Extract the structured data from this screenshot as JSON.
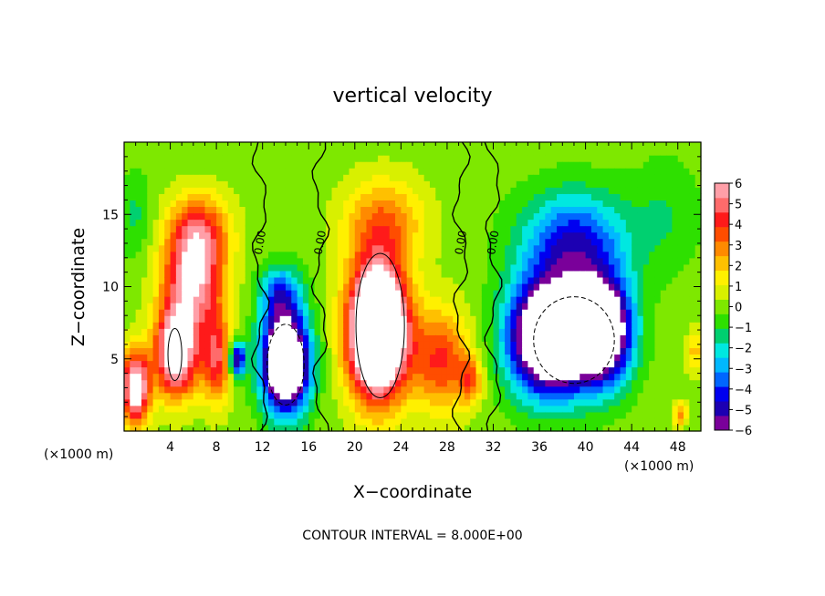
{
  "chart_data": {
    "type": "heatmap",
    "title": "vertical velocity",
    "xlabel": "X−coordinate",
    "ylabel": "Z−coordinate",
    "x_unit_left": "(×1000 m)",
    "x_unit_right": "(×1000 m)",
    "xlim": [
      0,
      50
    ],
    "ylim": [
      0,
      20
    ],
    "x_ticks": [
      4,
      8,
      12,
      16,
      20,
      24,
      28,
      32,
      36,
      40,
      44,
      48
    ],
    "x_tick_labels": [
      "4",
      "8",
      "12",
      "16",
      "20",
      "24",
      "28",
      "32",
      "36",
      "40",
      "44",
      "48"
    ],
    "y_ticks": [
      5,
      10,
      15
    ],
    "y_tick_labels": [
      "5",
      "10",
      "15"
    ],
    "colorbar": {
      "min": -6,
      "max": 6,
      "tick_labels": [
        "6",
        "5",
        "4",
        "3",
        "2",
        "1",
        "0",
        "−1",
        "−2",
        "−3",
        "−4",
        "−5",
        "−6"
      ],
      "colors": [
        "#7a009a",
        "#1c00b2",
        "#0000f0",
        "#0066ff",
        "#00b8ff",
        "#00e8e0",
        "#00d070",
        "#2ee000",
        "#7ee800",
        "#d8f000",
        "#fff000",
        "#ffc000",
        "#ff8a00",
        "#ff4d00",
        "#ff1a1a",
        "#ff6b6b",
        "#ff9fa8"
      ]
    },
    "contour_labels": [
      "0.00",
      "0.00",
      "0.00",
      "0.00"
    ],
    "contour_interval_text": "CONTOUR INTERVAL = 8.000E+00",
    "cells": [
      {
        "x": 1.0,
        "z": 3.0,
        "w": 7.5,
        "sx": 1.2,
        "sz": 2.5
      },
      {
        "x": 4.5,
        "z": 5.5,
        "w": 8.0,
        "sx": 1.8,
        "sz": 3.0
      },
      {
        "x": 6.0,
        "z": 10.5,
        "w": 6.0,
        "sx": 2.6,
        "sz": 3.5
      },
      {
        "x": 6.5,
        "z": 14.0,
        "w": 3.5,
        "sx": 2.6,
        "sz": 2.5
      },
      {
        "x": 8.0,
        "z": 5.0,
        "w": 4.5,
        "sx": 1.3,
        "sz": 3.0
      },
      {
        "x": 9.8,
        "z": 5.0,
        "w": -6.0,
        "sx": 0.7,
        "sz": 1.2
      },
      {
        "x": 14.0,
        "z": 4.8,
        "w": -11.0,
        "sx": 2.0,
        "sz": 3.3
      },
      {
        "x": 13.5,
        "z": 9.5,
        "w": -3.5,
        "sx": 1.8,
        "sz": 2.0
      },
      {
        "x": 22.0,
        "z": 7.0,
        "w": 13.0,
        "sx": 2.5,
        "sz": 4.5
      },
      {
        "x": 22.5,
        "z": 14.5,
        "w": 3.0,
        "sx": 3.5,
        "sz": 3.0
      },
      {
        "x": 27.5,
        "z": 5.0,
        "w": 4.0,
        "sx": 2.5,
        "sz": 3.5
      },
      {
        "x": 30.0,
        "z": 3.5,
        "w": 3.0,
        "sx": 1.0,
        "sz": 1.5
      },
      {
        "x": 37.0,
        "z": 6.5,
        "w": -11.0,
        "sx": 3.5,
        "sz": 3.8
      },
      {
        "x": 41.5,
        "z": 7.0,
        "w": -9.0,
        "sx": 2.5,
        "sz": 3.5
      },
      {
        "x": 39.0,
        "z": 13.0,
        "w": -4.5,
        "sx": 4.5,
        "sz": 3.5
      },
      {
        "x": 49.5,
        "z": 5.5,
        "w": 2.0,
        "sx": 0.8,
        "sz": 1.5
      },
      {
        "x": 48.2,
        "z": 1.2,
        "w": 3.0,
        "sx": 0.6,
        "sz": 0.8
      },
      {
        "x": 1.0,
        "z": 15.0,
        "w": -1.2,
        "sx": 1.5,
        "sz": 3.0
      },
      {
        "x": 47.0,
        "z": 15.0,
        "w": -1.0,
        "sx": 3.0,
        "sz": 4.0
      }
    ]
  }
}
